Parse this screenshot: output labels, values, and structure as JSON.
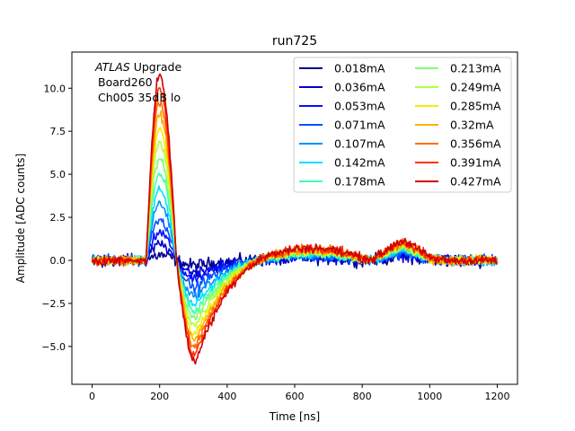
{
  "chart_data": {
    "type": "line",
    "title": "run725",
    "xlabel": "Time [ns]",
    "ylabel": "Amplitude [ADC counts]",
    "xlim": [
      -60,
      1260
    ],
    "ylim": [
      -7.2,
      12.1
    ],
    "xticks": [
      0,
      200,
      400,
      600,
      800,
      1000,
      1200
    ],
    "xtick_labels": [
      "0",
      "200",
      "400",
      "600",
      "800",
      "1000",
      "1200"
    ],
    "yticks": [
      -5.0,
      -2.5,
      0.0,
      2.5,
      5.0,
      7.5,
      10.0
    ],
    "ytick_labels": [
      "−5.0",
      "−2.5",
      "0.0",
      "2.5",
      "5.0",
      "7.5",
      "10.0"
    ],
    "annotation": {
      "italic": "ATLAS",
      "rest": " Upgrade",
      "line2": "Board260",
      "line3": "Ch005 35dB lo"
    },
    "legend_position": "top-right",
    "legend_columns": 2,
    "series": [
      {
        "name": "0.018mA",
        "color": "#00008f",
        "peak": 0.3,
        "trough": -0.3,
        "late": 0.15,
        "noise": 0.55
      },
      {
        "name": "0.036mA",
        "color": "#0000d1",
        "peak": 0.9,
        "trough": -0.7,
        "late": 0.2,
        "noise": 0.5
      },
      {
        "name": "0.053mA",
        "color": "#0010ff",
        "peak": 1.6,
        "trough": -1.1,
        "late": 0.25,
        "noise": 0.45
      },
      {
        "name": "0.071mA",
        "color": "#0050ff",
        "peak": 2.4,
        "trough": -1.6,
        "late": 0.3,
        "noise": 0.45
      },
      {
        "name": "0.107mA",
        "color": "#0090ff",
        "peak": 3.3,
        "trough": -2.1,
        "late": 0.35,
        "noise": 0.4
      },
      {
        "name": "0.142mA",
        "color": "#00e0ff",
        "peak": 4.1,
        "trough": -2.6,
        "late": 0.4,
        "noise": 0.4
      },
      {
        "name": "0.178mA",
        "color": "#40ffb0",
        "peak": 5.0,
        "trough": -3.0,
        "late": 0.45,
        "noise": 0.4
      },
      {
        "name": "0.213mA",
        "color": "#80ff70",
        "peak": 5.9,
        "trough": -3.4,
        "late": 0.5,
        "noise": 0.4
      },
      {
        "name": "0.249mA",
        "color": "#b0ff40",
        "peak": 6.8,
        "trough": -3.8,
        "late": 0.55,
        "noise": 0.4
      },
      {
        "name": "0.285mA",
        "color": "#f0f000",
        "peak": 7.6,
        "trough": -4.3,
        "late": 0.6,
        "noise": 0.4
      },
      {
        "name": "0.32mA",
        "color": "#ffb000",
        "peak": 8.4,
        "trough": -4.7,
        "late": 0.65,
        "noise": 0.4
      },
      {
        "name": "0.356mA",
        "color": "#ff7000",
        "peak": 9.2,
        "trough": -5.1,
        "late": 0.7,
        "noise": 0.4
      },
      {
        "name": "0.391mA",
        "color": "#ff3000",
        "peak": 10.0,
        "trough": -5.5,
        "late": 0.75,
        "noise": 0.4
      },
      {
        "name": "0.427mA",
        "color": "#d00000",
        "peak": 10.8,
        "trough": -5.9,
        "late": 0.8,
        "noise": 0.4
      }
    ],
    "pulse_shape": {
      "t_start": 0,
      "t_end": 1200,
      "sample_step": 3,
      "rise_start": 160,
      "peak_time": 200,
      "zero_cross": 250,
      "trough_time": 305,
      "recovery_end": 520,
      "bump_time": 920
    }
  }
}
